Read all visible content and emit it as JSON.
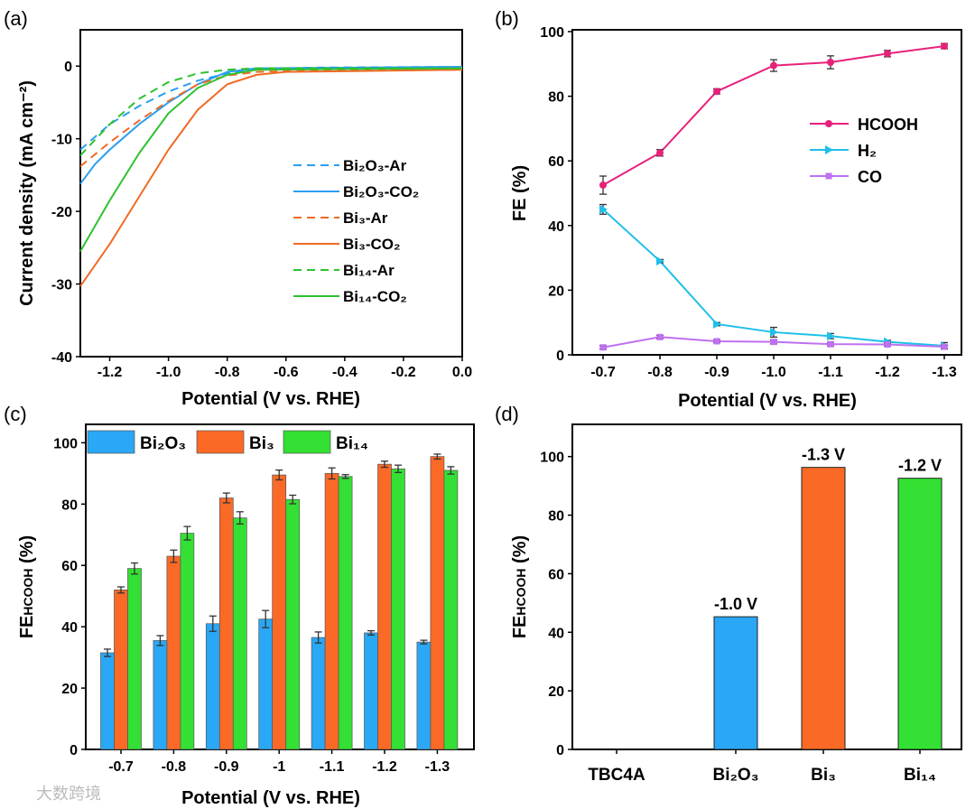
{
  "chart_data": [
    {
      "panel": "(a)",
      "type": "line",
      "xlabel": "Potential (V vs. RHE)",
      "ylabel": "Current density (mA cm⁻²)",
      "xlim": [
        -1.3,
        0.0
      ],
      "ylim": [
        -40,
        5
      ],
      "xticks": [
        "-1.2",
        "-1.0",
        "-0.8",
        "-0.6",
        "-0.4",
        "-0.2",
        "0.0"
      ],
      "yticks": [
        "0",
        "-10",
        "-20",
        "-30",
        "-40"
      ],
      "legend_position": "center-right",
      "series": [
        {
          "name": "Bi₂O₃-Ar",
          "color": "#2b9ef0",
          "dashed": true,
          "x": [
            -1.3,
            -1.2,
            -1.1,
            -1.0,
            -0.9,
            -0.8,
            -0.7,
            -0.5,
            0
          ],
          "y": [
            -11.5,
            -8,
            -5.5,
            -3.5,
            -2,
            -1,
            -0.4,
            -0.2,
            -0.1
          ]
        },
        {
          "name": "Bi₂O₃-CO₂",
          "color": "#2b9ef0",
          "dashed": false,
          "x": [
            -1.3,
            -1.25,
            -1.2,
            -1.1,
            -1.0,
            -0.9,
            -0.8,
            -0.7,
            0
          ],
          "y": [
            -16.2,
            -13.5,
            -11.5,
            -8,
            -5,
            -2.5,
            -0.8,
            -0.3,
            -0.1
          ]
        },
        {
          "name": "Bi₃-Ar",
          "color": "#f06a25",
          "dashed": true,
          "x": [
            -1.3,
            -1.2,
            -1.1,
            -1.0,
            -0.9,
            -0.8,
            -0.7,
            -0.5,
            0
          ],
          "y": [
            -13.8,
            -10.5,
            -7.5,
            -4.8,
            -2.5,
            -1.3,
            -0.8,
            -0.6,
            -0.5
          ]
        },
        {
          "name": "Bi₃-CO₂",
          "color": "#f06a25",
          "dashed": false,
          "x": [
            -1.3,
            -1.2,
            -1.1,
            -1.0,
            -0.9,
            -0.8,
            -0.7,
            -0.6,
            0
          ],
          "y": [
            -30.3,
            -24.5,
            -18,
            -11.5,
            -6,
            -2.5,
            -1.2,
            -0.8,
            -0.5
          ]
        },
        {
          "name": "Bi₁₄-Ar",
          "color": "#2ec22e",
          "dashed": true,
          "x": [
            -1.3,
            -1.2,
            -1.1,
            -1.0,
            -0.9,
            -0.8,
            -0.7,
            0
          ],
          "y": [
            -12.3,
            -8,
            -4.5,
            -2.2,
            -1,
            -0.5,
            -0.3,
            -0.3
          ]
        },
        {
          "name": "Bi₁₄-CO₂",
          "color": "#2ec22e",
          "dashed": false,
          "x": [
            -1.3,
            -1.2,
            -1.1,
            -1.0,
            -0.9,
            -0.8,
            -0.7,
            0
          ],
          "y": [
            -25.5,
            -18.5,
            -12,
            -6.5,
            -3,
            -1.2,
            -0.5,
            -0.3
          ]
        }
      ]
    },
    {
      "panel": "(b)",
      "type": "line",
      "xlabel": "Potential (V vs. RHE)",
      "ylabel": "FE (%)",
      "ylim": [
        0,
        100
      ],
      "categories": [
        "-0.7",
        "-0.8",
        "-0.9",
        "-1.0",
        "-1.1",
        "-1.2",
        "-1.3"
      ],
      "yticks": [
        "0",
        "20",
        "40",
        "60",
        "80",
        "100"
      ],
      "legend_position": "right",
      "series": [
        {
          "name": "HCOOH",
          "color": "#e8207a",
          "marker": "circle",
          "values": [
            52.5,
            62.5,
            81.5,
            89.5,
            90.5,
            93.2,
            95.5
          ],
          "errors": [
            2.8,
            1,
            0.8,
            1.8,
            2,
            1,
            0.8
          ]
        },
        {
          "name": "H₂",
          "color": "#1ec0e8",
          "marker": "triangle-right",
          "values": [
            45,
            29,
            9.5,
            7,
            5.8,
            4,
            2.8
          ],
          "errors": [
            1.5,
            0.5,
            0.5,
            1.5,
            0.8,
            0.5,
            1
          ]
        },
        {
          "name": "CO",
          "color": "#c070f0",
          "marker": "square",
          "values": [
            2.3,
            5.5,
            4.2,
            4,
            3.3,
            3.2,
            2.5
          ],
          "errors": [
            0.5,
            0.5,
            0.4,
            0.6,
            0.5,
            0.4,
            0.5
          ]
        }
      ]
    },
    {
      "panel": "(c)",
      "type": "bar",
      "xlabel": "Potential (V vs. RHE)",
      "ylabel": "FE",
      "ylabel_sub": "HCOOH",
      "ylabel_unit": " (%)",
      "ylim": [
        0,
        106
      ],
      "categories": [
        "-0.7",
        "-0.8",
        "-0.9",
        "-1",
        "-1.1",
        "-1.2",
        "-1.3"
      ],
      "yticks": [
        "0",
        "20",
        "40",
        "60",
        "80",
        "100"
      ],
      "legend_position": "top-left",
      "series": [
        {
          "name": "Bi₂O₃",
          "color": "#2aa7f5",
          "values": [
            31.5,
            35.5,
            41,
            42.5,
            36.5,
            38,
            35
          ],
          "errors": [
            1.2,
            1.6,
            2.5,
            2.8,
            1.8,
            0.7,
            0.6
          ]
        },
        {
          "name": "Bi₃",
          "color": "#fa6a26",
          "values": [
            52,
            63,
            82,
            89.5,
            90,
            93,
            95.5
          ],
          "errors": [
            1,
            2,
            1.6,
            1.6,
            1.8,
            1,
            0.8
          ]
        },
        {
          "name": "Bi₁₄",
          "color": "#33e033",
          "values": [
            59,
            70.5,
            75.5,
            81.5,
            89,
            91.5,
            91
          ],
          "errors": [
            1.8,
            2.2,
            2,
            1.4,
            0.6,
            1.2,
            1.2
          ]
        }
      ]
    },
    {
      "panel": "(d)",
      "type": "bar",
      "xlabel": "",
      "ylabel": "FE",
      "ylabel_sub": "HCOOH",
      "ylabel_unit": " (%)",
      "ylim": [
        0,
        111
      ],
      "categories": [
        "TBC4A",
        "Bi₂O₃",
        "Bi₃",
        "Bi₁₄"
      ],
      "yticks": [
        "0",
        "20",
        "40",
        "60",
        "80",
        "100"
      ],
      "values": [
        0,
        45.3,
        96.3,
        92.6
      ],
      "colors": [
        "#ffffff",
        "#2aa7f5",
        "#fa6a26",
        "#33e033"
      ],
      "data_labels": [
        "",
        "-1.0 V",
        "-1.3 V",
        "-1.2 V"
      ]
    }
  ],
  "watermark": "大数跨境"
}
